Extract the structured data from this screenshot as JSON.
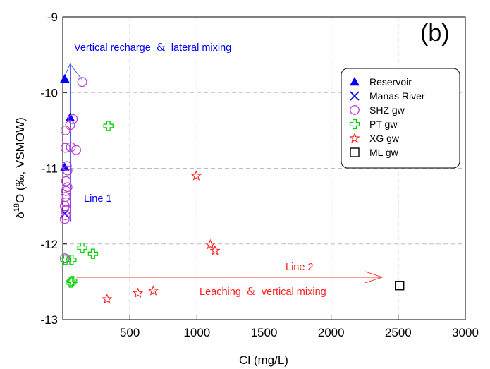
{
  "chart_data": {
    "type": "scatter",
    "panel_label": "(b)",
    "xlabel": "Cl (mg/L)",
    "ylabel_prefix": "δ",
    "ylabel_sup": "18",
    "ylabel_rest": "O (‰, VSMOW)",
    "xlim": [
      0,
      3000
    ],
    "ylim": [
      -13,
      -9
    ],
    "xticks": [
      500,
      1000,
      1500,
      2000,
      2500,
      3000
    ],
    "yticks": [
      -13,
      -12,
      -11,
      -10,
      -9
    ],
    "grid": true,
    "legend_position": "top-right",
    "series": [
      {
        "name": "Reservoir",
        "marker": "triangle",
        "color": "#0000ff",
        "filled": true,
        "points": [
          [
            15,
            -9.82
          ],
          [
            55,
            -10.33
          ],
          [
            15,
            -10.99
          ]
        ]
      },
      {
        "name": "Manas River",
        "marker": "x",
        "color": "#0000ff",
        "filled": false,
        "points": [
          [
            15,
            -11.6
          ]
        ]
      },
      {
        "name": "SHZ gw",
        "marker": "circle",
        "color": "#bf40d9",
        "filled": false,
        "points": [
          [
            145,
            -9.86
          ],
          [
            75,
            -10.35
          ],
          [
            55,
            -10.43
          ],
          [
            20,
            -10.5
          ],
          [
            60,
            -10.72
          ],
          [
            20,
            -10.73
          ],
          [
            100,
            -10.76
          ],
          [
            30,
            -10.97
          ],
          [
            35,
            -11.03
          ],
          [
            25,
            -11.17
          ],
          [
            35,
            -11.25
          ],
          [
            25,
            -11.3
          ],
          [
            20,
            -11.38
          ],
          [
            25,
            -11.45
          ],
          [
            15,
            -11.5
          ],
          [
            25,
            -11.55
          ],
          [
            20,
            -11.62
          ],
          [
            15,
            -11.67
          ],
          [
            15,
            -12.19
          ]
        ]
      },
      {
        "name": "PT gw",
        "marker": "cross",
        "color": "#00d200",
        "filled": false,
        "points": [
          [
            340,
            -10.44
          ],
          [
            145,
            -12.05
          ],
          [
            225,
            -12.13
          ],
          [
            20,
            -12.21
          ],
          [
            65,
            -12.21
          ],
          [
            70,
            -12.49
          ],
          [
            60,
            -12.51
          ]
        ]
      },
      {
        "name": "XG gw",
        "marker": "star",
        "color": "#ff2020",
        "filled": false,
        "points": [
          [
            995,
            -11.1
          ],
          [
            1100,
            -12.01
          ],
          [
            1135,
            -12.09
          ],
          [
            675,
            -12.62
          ],
          [
            560,
            -12.65
          ],
          [
            330,
            -12.73
          ]
        ]
      },
      {
        "name": "ML gw",
        "marker": "square",
        "color": "#000000",
        "filled": false,
        "points": [
          [
            2510,
            -12.55
          ]
        ]
      }
    ],
    "annotations": [
      {
        "text": "Vertical recharge",
        "amp": "&",
        "text2": "lateral mixing",
        "color": "#0000ff"
      },
      {
        "text": "Line 1",
        "color": "#0000ff"
      },
      {
        "text": "Line 2",
        "color": "#ff2020"
      },
      {
        "text": "Leaching",
        "amp": "&",
        "text2": "vertical mixing",
        "color": "#ff2020"
      }
    ]
  }
}
